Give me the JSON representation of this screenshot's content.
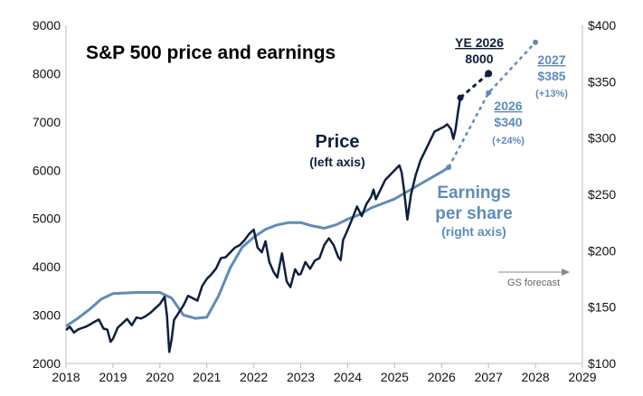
{
  "chart_data": {
    "type": "line",
    "title": "S&P 500 price and earnings",
    "x_ticks": [
      "2018",
      "2019",
      "2020",
      "2021",
      "2022",
      "2023",
      "2024",
      "2025",
      "2026",
      "2027",
      "2028",
      "2029"
    ],
    "xlim": [
      2018,
      2029
    ],
    "y_left": {
      "ticks": [
        "2000",
        "3000",
        "4000",
        "5000",
        "6000",
        "7000",
        "8000",
        "9000"
      ],
      "ylim": [
        2000,
        9000
      ]
    },
    "y_right": {
      "ticks": [
        "$100",
        "$150",
        "$200",
        "$250",
        "$300",
        "$350",
        "$400"
      ],
      "ylim": [
        100,
        400
      ]
    },
    "series": [
      {
        "name": "Price",
        "sublabel": "(left axis)",
        "axis": "left",
        "color": "#0d1f3c",
        "points": [
          [
            2018.0,
            2690
          ],
          [
            2018.08,
            2760
          ],
          [
            2018.17,
            2640
          ],
          [
            2018.25,
            2700
          ],
          [
            2018.33,
            2730
          ],
          [
            2018.42,
            2760
          ],
          [
            2018.5,
            2800
          ],
          [
            2018.6,
            2860
          ],
          [
            2018.7,
            2910
          ],
          [
            2018.8,
            2720
          ],
          [
            2018.88,
            2700
          ],
          [
            2018.95,
            2450
          ],
          [
            2019.0,
            2510
          ],
          [
            2019.1,
            2740
          ],
          [
            2019.2,
            2830
          ],
          [
            2019.3,
            2920
          ],
          [
            2019.4,
            2790
          ],
          [
            2019.5,
            2950
          ],
          [
            2019.6,
            2930
          ],
          [
            2019.7,
            2980
          ],
          [
            2019.8,
            3050
          ],
          [
            2019.9,
            3140
          ],
          [
            2020.0,
            3230
          ],
          [
            2020.1,
            3380
          ],
          [
            2020.15,
            3000
          ],
          [
            2020.2,
            2240
          ],
          [
            2020.25,
            2500
          ],
          [
            2020.3,
            2900
          ],
          [
            2020.4,
            3050
          ],
          [
            2020.5,
            3200
          ],
          [
            2020.6,
            3400
          ],
          [
            2020.7,
            3350
          ],
          [
            2020.8,
            3300
          ],
          [
            2020.9,
            3600
          ],
          [
            2021.0,
            3750
          ],
          [
            2021.1,
            3850
          ],
          [
            2021.2,
            3970
          ],
          [
            2021.3,
            4180
          ],
          [
            2021.4,
            4200
          ],
          [
            2021.5,
            4300
          ],
          [
            2021.6,
            4400
          ],
          [
            2021.7,
            4450
          ],
          [
            2021.8,
            4550
          ],
          [
            2021.9,
            4680
          ],
          [
            2022.0,
            4770
          ],
          [
            2022.08,
            4400
          ],
          [
            2022.17,
            4300
          ],
          [
            2022.25,
            4530
          ],
          [
            2022.33,
            4100
          ],
          [
            2022.42,
            3900
          ],
          [
            2022.5,
            3780
          ],
          [
            2022.6,
            4280
          ],
          [
            2022.7,
            3700
          ],
          [
            2022.78,
            3580
          ],
          [
            2022.88,
            3950
          ],
          [
            2022.95,
            3840
          ],
          [
            2023.0,
            3850
          ],
          [
            2023.1,
            4100
          ],
          [
            2023.2,
            3960
          ],
          [
            2023.3,
            4130
          ],
          [
            2023.4,
            4180
          ],
          [
            2023.5,
            4450
          ],
          [
            2023.6,
            4590
          ],
          [
            2023.7,
            4450
          ],
          [
            2023.8,
            4200
          ],
          [
            2023.85,
            4140
          ],
          [
            2023.9,
            4550
          ],
          [
            2024.0,
            4770
          ],
          [
            2024.1,
            5000
          ],
          [
            2024.2,
            5250
          ],
          [
            2024.3,
            5050
          ],
          [
            2024.4,
            5300
          ],
          [
            2024.5,
            5450
          ],
          [
            2024.55,
            5600
          ],
          [
            2024.6,
            5400
          ],
          [
            2024.7,
            5600
          ],
          [
            2024.8,
            5800
          ],
          [
            2024.9,
            5900
          ],
          [
            2025.0,
            6000
          ],
          [
            2025.1,
            6100
          ],
          [
            2025.15,
            5950
          ],
          [
            2025.2,
            5600
          ],
          [
            2025.27,
            4980
          ],
          [
            2025.35,
            5500
          ],
          [
            2025.45,
            5900
          ],
          [
            2025.55,
            6200
          ],
          [
            2025.65,
            6400
          ],
          [
            2025.75,
            6600
          ],
          [
            2025.85,
            6800
          ],
          [
            2025.95,
            6850
          ],
          [
            2026.05,
            6900
          ],
          [
            2026.12,
            6950
          ],
          [
            2026.2,
            6850
          ],
          [
            2026.25,
            6650
          ],
          [
            2026.3,
            6850
          ],
          [
            2026.35,
            7200
          ],
          [
            2026.4,
            7500
          ]
        ]
      },
      {
        "name": "Earnings per share",
        "sublabel": "(right axis)",
        "axis": "right",
        "color": "#5f8bbb",
        "points": [
          [
            2018.0,
            133
          ],
          [
            2018.25,
            140
          ],
          [
            2018.5,
            148
          ],
          [
            2018.75,
            157
          ],
          [
            2019.0,
            162
          ],
          [
            2019.5,
            163
          ],
          [
            2020.0,
            163
          ],
          [
            2020.25,
            158
          ],
          [
            2020.5,
            143
          ],
          [
            2020.75,
            140
          ],
          [
            2021.0,
            141
          ],
          [
            2021.25,
            160
          ],
          [
            2021.5,
            185
          ],
          [
            2021.75,
            203
          ],
          [
            2022.0,
            212
          ],
          [
            2022.25,
            219
          ],
          [
            2022.5,
            223
          ],
          [
            2022.75,
            225
          ],
          [
            2023.0,
            225
          ],
          [
            2023.25,
            222
          ],
          [
            2023.5,
            220
          ],
          [
            2023.75,
            223
          ],
          [
            2024.0,
            228
          ],
          [
            2024.25,
            232
          ],
          [
            2024.5,
            238
          ],
          [
            2024.75,
            242
          ],
          [
            2025.0,
            246
          ],
          [
            2025.25,
            252
          ],
          [
            2025.5,
            258
          ],
          [
            2025.75,
            264
          ],
          [
            2026.0,
            270
          ],
          [
            2026.15,
            274
          ]
        ]
      }
    ],
    "forecasts": [
      {
        "series": "Price",
        "axis": "left",
        "color": "#0d1f3c",
        "points": [
          [
            2026.4,
            7500
          ],
          [
            2027.0,
            8000
          ]
        ],
        "label_top": "YE 2026",
        "label_value": "8000"
      },
      {
        "series": "Earnings per share",
        "axis": "right",
        "color": "#5f8bbb",
        "points": [
          [
            2026.15,
            274
          ],
          [
            2027.0,
            340
          ],
          [
            2028.0,
            385
          ]
        ]
      }
    ],
    "forecast_labels": [
      {
        "year": "2026",
        "value": "$340",
        "change": "(+24%)"
      },
      {
        "year": "2027",
        "value": "$385",
        "change": "(+13%)"
      }
    ],
    "annotation": "GS forecast",
    "grid": false,
    "legend": "inline labels"
  }
}
